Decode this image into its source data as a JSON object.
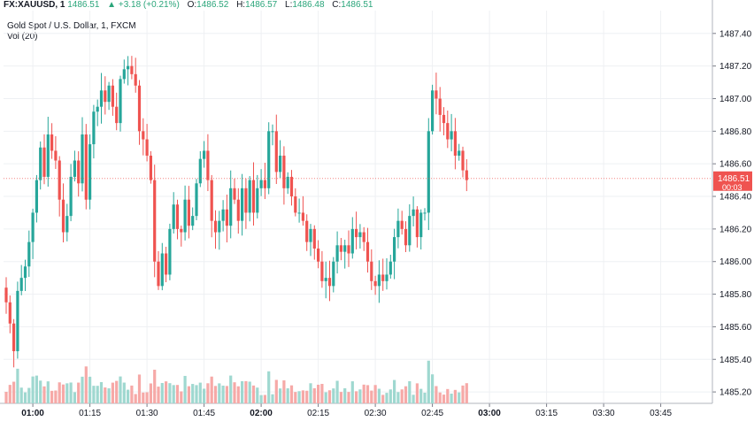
{
  "header": {
    "symbol": "FX:XAUUSD, 1",
    "last": "1486.51",
    "change": "▲ +3.18 (+0.21%)",
    "o_label": "O:",
    "o": "1486.52",
    "h_label": "H:",
    "h": "1486.57",
    "l_label": "L:",
    "l": "1486.48",
    "c_label": "C:",
    "c": "1486.51"
  },
  "title": "Gold Spot / U.S. Dollar, 1, FXCM",
  "volume_label": "Vol (20)",
  "colors": {
    "up": "#26a69a",
    "down": "#ef5350",
    "up_vol": "#9fd8d0",
    "down_vol": "#f6a9a7",
    "grid": "#eef0f3"
  },
  "price_tag": {
    "value": "1486.51",
    "countdown": "00:03"
  },
  "chart_data": {
    "type": "candlestick",
    "title": "Gold Spot / U.S. Dollar, 1, FXCM",
    "y_ticks": [
      1485.2,
      1485.4,
      1485.6,
      1485.8,
      1486.0,
      1486.2,
      1486.4,
      1486.6,
      1486.8,
      1487.0,
      1487.2,
      1487.4
    ],
    "y_tick_labels": [
      "1485.20",
      "1485.40",
      "1485.60",
      "1485.80",
      "1486.00",
      "1486.20",
      "1486.40",
      "1486.60",
      "1486.80",
      "1487.00",
      "1487.20",
      "1487.40"
    ],
    "ylim": [
      1485.13,
      1487.54
    ],
    "x_ticks": [
      {
        "label": "01:00",
        "index": 7,
        "bold": true
      },
      {
        "label": "01:15",
        "index": 22,
        "bold": false
      },
      {
        "label": "01:30",
        "index": 37,
        "bold": false
      },
      {
        "label": "01:45",
        "index": 52,
        "bold": false
      },
      {
        "label": "02:00",
        "index": 67,
        "bold": true
      },
      {
        "label": "02:15",
        "index": 82,
        "bold": false
      },
      {
        "label": "02:30",
        "index": 97,
        "bold": false
      },
      {
        "label": "02:45",
        "index": 112,
        "bold": false
      },
      {
        "label": "03:00",
        "index": 127,
        "bold": true
      },
      {
        "label": "03:15",
        "index": 142,
        "bold": false
      },
      {
        "label": "03:30",
        "index": 157,
        "bold": false
      },
      {
        "label": "03:45",
        "index": 172,
        "bold": false
      }
    ],
    "last_price": 1486.51,
    "closes": [
      1485.75,
      1485.62,
      1485.45,
      1485.82,
      1485.9,
      1485.97,
      1486.12,
      1486.3,
      1486.5,
      1486.7,
      1486.52,
      1486.78,
      1486.68,
      1486.62,
      1486.38,
      1486.18,
      1486.28,
      1486.52,
      1486.62,
      1486.48,
      1486.78,
      1486.38,
      1486.72,
      1486.92,
      1486.95,
      1487.05,
      1486.98,
      1487.08,
      1486.95,
      1486.85,
      1487.12,
      1487.18,
      1487.2,
      1487.15,
      1487.08,
      1486.8,
      1486.75,
      1486.65,
      1486.5,
      1486.0,
      1485.85,
      1486.05,
      1485.92,
      1486.2,
      1486.35,
      1486.2,
      1486.18,
      1486.38,
      1486.22,
      1486.28,
      1486.48,
      1486.63,
      1486.68,
      1486.5,
      1486.25,
      1486.18,
      1486.25,
      1486.32,
      1486.22,
      1486.45,
      1486.38,
      1486.25,
      1486.45,
      1486.3,
      1486.5,
      1486.3,
      1486.45,
      1486.5,
      1486.45,
      1486.8,
      1486.8,
      1486.55,
      1486.65,
      1486.45,
      1486.52,
      1486.4,
      1486.3,
      1486.3,
      1486.25,
      1486.12,
      1486.2,
      1486.08,
      1486.0,
      1485.88,
      1485.9,
      1485.85,
      1486.0,
      1486.1,
      1486.06,
      1486.1,
      1486.05,
      1486.2,
      1486.15,
      1486.18,
      1486.12,
      1486.0,
      1485.88,
      1485.85,
      1485.92,
      1485.88,
      1485.92,
      1486.0,
      1486.15,
      1486.25,
      1486.2,
      1486.1,
      1486.28,
      1486.32,
      1486.15,
      1486.3,
      1486.3,
      1486.8,
      1487.05,
      1487.0,
      1486.9,
      1486.85,
      1486.75,
      1486.8,
      1486.65,
      1486.68,
      1486.56,
      1486.5
    ]
  }
}
